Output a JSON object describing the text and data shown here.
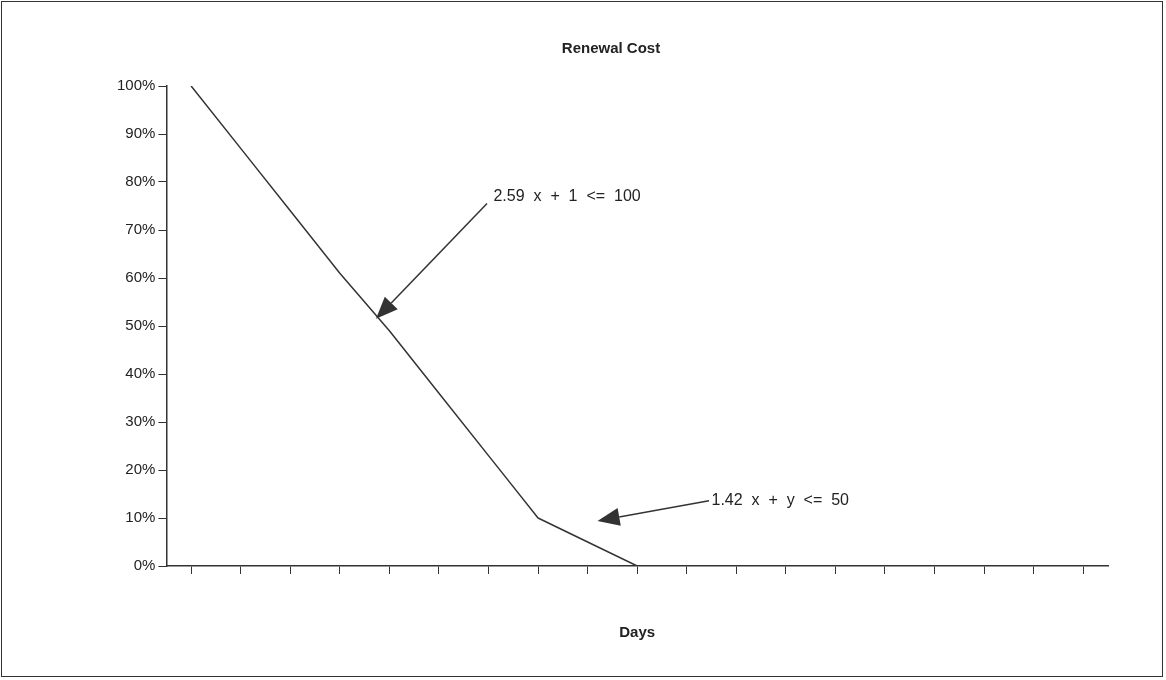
{
  "chart_data": {
    "type": "line",
    "title": "Renewal Cost",
    "xlabel": "Days",
    "categories": [
      null,
      null,
      null,
      null,
      null,
      null,
      null,
      null,
      null,
      null,
      null,
      null,
      null,
      null,
      null,
      null,
      null,
      null,
      null
    ],
    "series": [
      {
        "color": "#333333",
        "values": [
          100,
          87,
          74,
          61,
          49,
          36,
          23,
          10,
          5,
          0,
          null,
          null,
          null,
          null,
          null,
          null,
          null,
          null,
          null
        ]
      }
    ],
    "ylim": [
      0,
      100
    ],
    "yticks": [
      {
        "value": 0,
        "label": "0%"
      },
      {
        "value": 10,
        "label": "10%"
      },
      {
        "value": 20,
        "label": "20%"
      },
      {
        "value": 30,
        "label": "30%"
      },
      {
        "value": 40,
        "label": "40%"
      },
      {
        "value": 50,
        "label": "50%"
      },
      {
        "value": 60,
        "label": "60%"
      },
      {
        "value": 70,
        "label": "70%"
      },
      {
        "value": 80,
        "label": "80%"
      },
      {
        "value": 90,
        "label": "90%"
      },
      {
        "value": 100,
        "label": "100%"
      }
    ],
    "annotations": [
      "2.59  x  +  1  <=  100",
      "1.42  x  +  y  <=  50"
    ],
    "tick_labels": "y",
    "grid": false,
    "legend": false,
    "marker": "none",
    "line_style": "solid"
  }
}
